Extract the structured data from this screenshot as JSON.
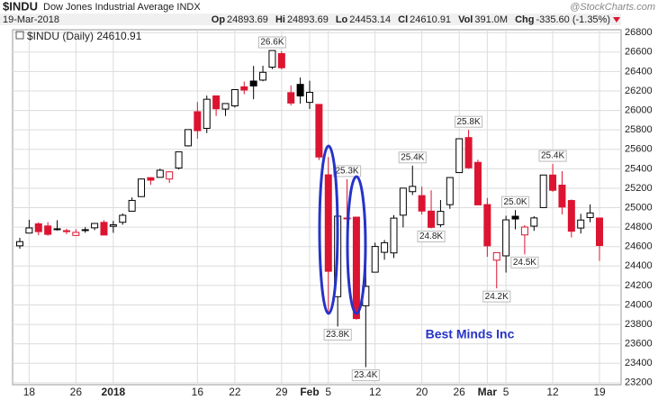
{
  "header": {
    "symbol": "$INDU",
    "name": "Dow Jones Industrial Average INDX",
    "source": "@StockCharts.com",
    "date": "19-Mar-2018",
    "stats": [
      {
        "label": "Op",
        "value": "24893.69"
      },
      {
        "label": "Hi",
        "value": "24893.69"
      },
      {
        "label": "Lo",
        "value": "24453.14"
      },
      {
        "label": "Cl",
        "value": "24610.91"
      },
      {
        "label": "Vol",
        "value": "391.0M"
      },
      {
        "label": "Chg",
        "value": "-335.60 (-1.35%)"
      }
    ]
  },
  "chart_data": {
    "type": "candlestick",
    "legend": "$INDU (Daily) 24610.91",
    "watermark": "Best Minds Inc",
    "up_color": "#000000",
    "down_color": "#dc1431",
    "grid": true,
    "ylim": [
      23180,
      26830
    ],
    "yticks": [
      {
        "value": 23200,
        "label": "23200"
      },
      {
        "value": 23400,
        "label": "23400"
      },
      {
        "value": 23600,
        "label": "23600"
      },
      {
        "value": 23800,
        "label": "23800"
      },
      {
        "value": 24000,
        "label": "24000"
      },
      {
        "value": 24200,
        "label": "24200"
      },
      {
        "value": 24400,
        "label": "24400"
      },
      {
        "value": 24600,
        "label": "24600"
      },
      {
        "value": 24800,
        "label": "24800"
      },
      {
        "value": 25000,
        "label": "25000"
      },
      {
        "value": 25200,
        "label": "25200"
      },
      {
        "value": 25400,
        "label": "25400"
      },
      {
        "value": 25600,
        "label": "25600"
      },
      {
        "value": 25800,
        "label": "25800"
      },
      {
        "value": 26000,
        "label": "26000"
      },
      {
        "value": 26200,
        "label": "26200"
      },
      {
        "value": 26400,
        "label": "26400"
      },
      {
        "value": 26600,
        "label": "26600"
      },
      {
        "value": 26800,
        "label": "26800"
      }
    ],
    "categories": [
      null,
      "18",
      null,
      null,
      null,
      null,
      "26",
      null,
      null,
      null,
      "2018",
      null,
      null,
      null,
      null,
      null,
      null,
      null,
      null,
      "16",
      null,
      null,
      null,
      "22",
      null,
      null,
      null,
      null,
      "29",
      null,
      null,
      "Feb",
      null,
      "5",
      null,
      null,
      null,
      null,
      "12",
      null,
      null,
      null,
      null,
      "20",
      null,
      null,
      null,
      "26",
      null,
      null,
      "Mar",
      null,
      "5",
      null,
      null,
      null,
      null,
      "12",
      null,
      null,
      null,
      null,
      "19"
    ],
    "open": [
      24608,
      24739,
      24834,
      24812,
      24783,
      24764,
      24715,
      24766,
      24793,
      24849,
      24809,
      24850,
      24964,
      25114,
      25309,
      25312,
      25295,
      25408,
      25636,
      25987,
      25816,
      26150,
      26014,
      26047,
      26243,
      26302,
      26312,
      26445,
      26584,
      26183,
      26268,
      26083,
      26062,
      25338,
      24085,
      24894,
      24903,
      23992,
      24337,
      24541,
      24535,
      24923,
      25165,
      25124,
      24965,
      24825,
      25031,
      25361,
      25721,
      25466,
      25032,
      24460,
      24505,
      24912,
      24720,
      24810,
      25001,
      25336,
      25232,
      25074,
      24791,
      24899,
      24894
    ],
    "high": [
      24690,
      24876,
      24850,
      24852,
      24871,
      24784,
      24778,
      24800,
      24840,
      24871,
      24864,
      24941,
      25105,
      25299,
      25311,
      25401,
      25374,
      25575,
      25803,
      26086,
      26153,
      26154,
      26072,
      26215,
      26297,
      26458,
      26460,
      26617,
      26608,
      26257,
      26338,
      26306,
      26062,
      25520,
      24946,
      25293,
      24903,
      24382,
      24641,
      24668,
      24924,
      25201,
      25433,
      25216,
      25179,
      25079,
      25310,
      25709,
      25800,
      25493,
      25100,
      24538,
      24917,
      24975,
      24821,
      24913,
      25336,
      25449,
      25376,
      25084,
      24937,
      25034,
      24894
    ],
    "low": [
      24578,
      24739,
      24717,
      24712,
      24765,
      24728,
      24710,
      24742,
      24769,
      24719,
      24742,
      24825,
      24963,
      25112,
      25235,
      25307,
      25254,
      25393,
      25628,
      25710,
      25767,
      25943,
      25943,
      26030,
      26167,
      26115,
      26300,
      26425,
      26422,
      26050,
      26070,
      26015,
      25490,
      23924,
      23778,
      24797,
      23849,
      23360,
      24337,
      24465,
      24483,
      24797,
      25131,
      24930,
      24787,
      24800,
      24988,
      25360,
      25400,
      25029,
      24495,
      24170,
      24333,
      24778,
      24520,
      24761,
      24999,
      25163,
      24931,
      24694,
      24734,
      24850,
      24453
    ],
    "close": [
      24651,
      24792,
      24754,
      24726,
      24782,
      24754,
      24746,
      24774,
      24838,
      24719,
      24824,
      24922,
      25075,
      25295,
      25283,
      25385,
      25369,
      25574,
      25803,
      25792,
      26115,
      26017,
      26071,
      26214,
      26210,
      26252,
      26392,
      26616,
      26439,
      26076,
      26149,
      26186,
      25521,
      24346,
      24913,
      24893,
      23860,
      24191,
      24601,
      24640,
      24893,
      25201,
      25219,
      24965,
      24798,
      24962,
      25310,
      25709,
      25410,
      25029,
      24608,
      24538,
      24875,
      24884,
      24801,
      24895,
      25336,
      25179,
      25007,
      24758,
      24873,
      24946,
      24611
    ],
    "high_labels": [
      null,
      null,
      null,
      null,
      null,
      null,
      null,
      null,
      null,
      null,
      null,
      null,
      null,
      null,
      null,
      null,
      null,
      null,
      null,
      null,
      null,
      null,
      null,
      null,
      null,
      null,
      null,
      "26.6K",
      null,
      null,
      null,
      null,
      null,
      null,
      null,
      "25.3K",
      null,
      null,
      null,
      null,
      null,
      null,
      "25.4K",
      null,
      null,
      null,
      null,
      null,
      "25.8K",
      null,
      null,
      null,
      null,
      "25.0K",
      null,
      null,
      null,
      "25.4K",
      null,
      null,
      null,
      null,
      null
    ],
    "low_labels": [
      null,
      null,
      null,
      null,
      null,
      null,
      null,
      null,
      null,
      null,
      null,
      null,
      null,
      null,
      null,
      null,
      null,
      null,
      null,
      null,
      null,
      null,
      null,
      null,
      null,
      null,
      null,
      null,
      null,
      null,
      null,
      null,
      null,
      null,
      "23.8K",
      null,
      null,
      "23.4K",
      null,
      null,
      null,
      null,
      null,
      null,
      "24.8K",
      null,
      null,
      null,
      null,
      null,
      null,
      "24.2K",
      null,
      null,
      "24.5K",
      null,
      null,
      null,
      null,
      null,
      null,
      null,
      null
    ]
  }
}
